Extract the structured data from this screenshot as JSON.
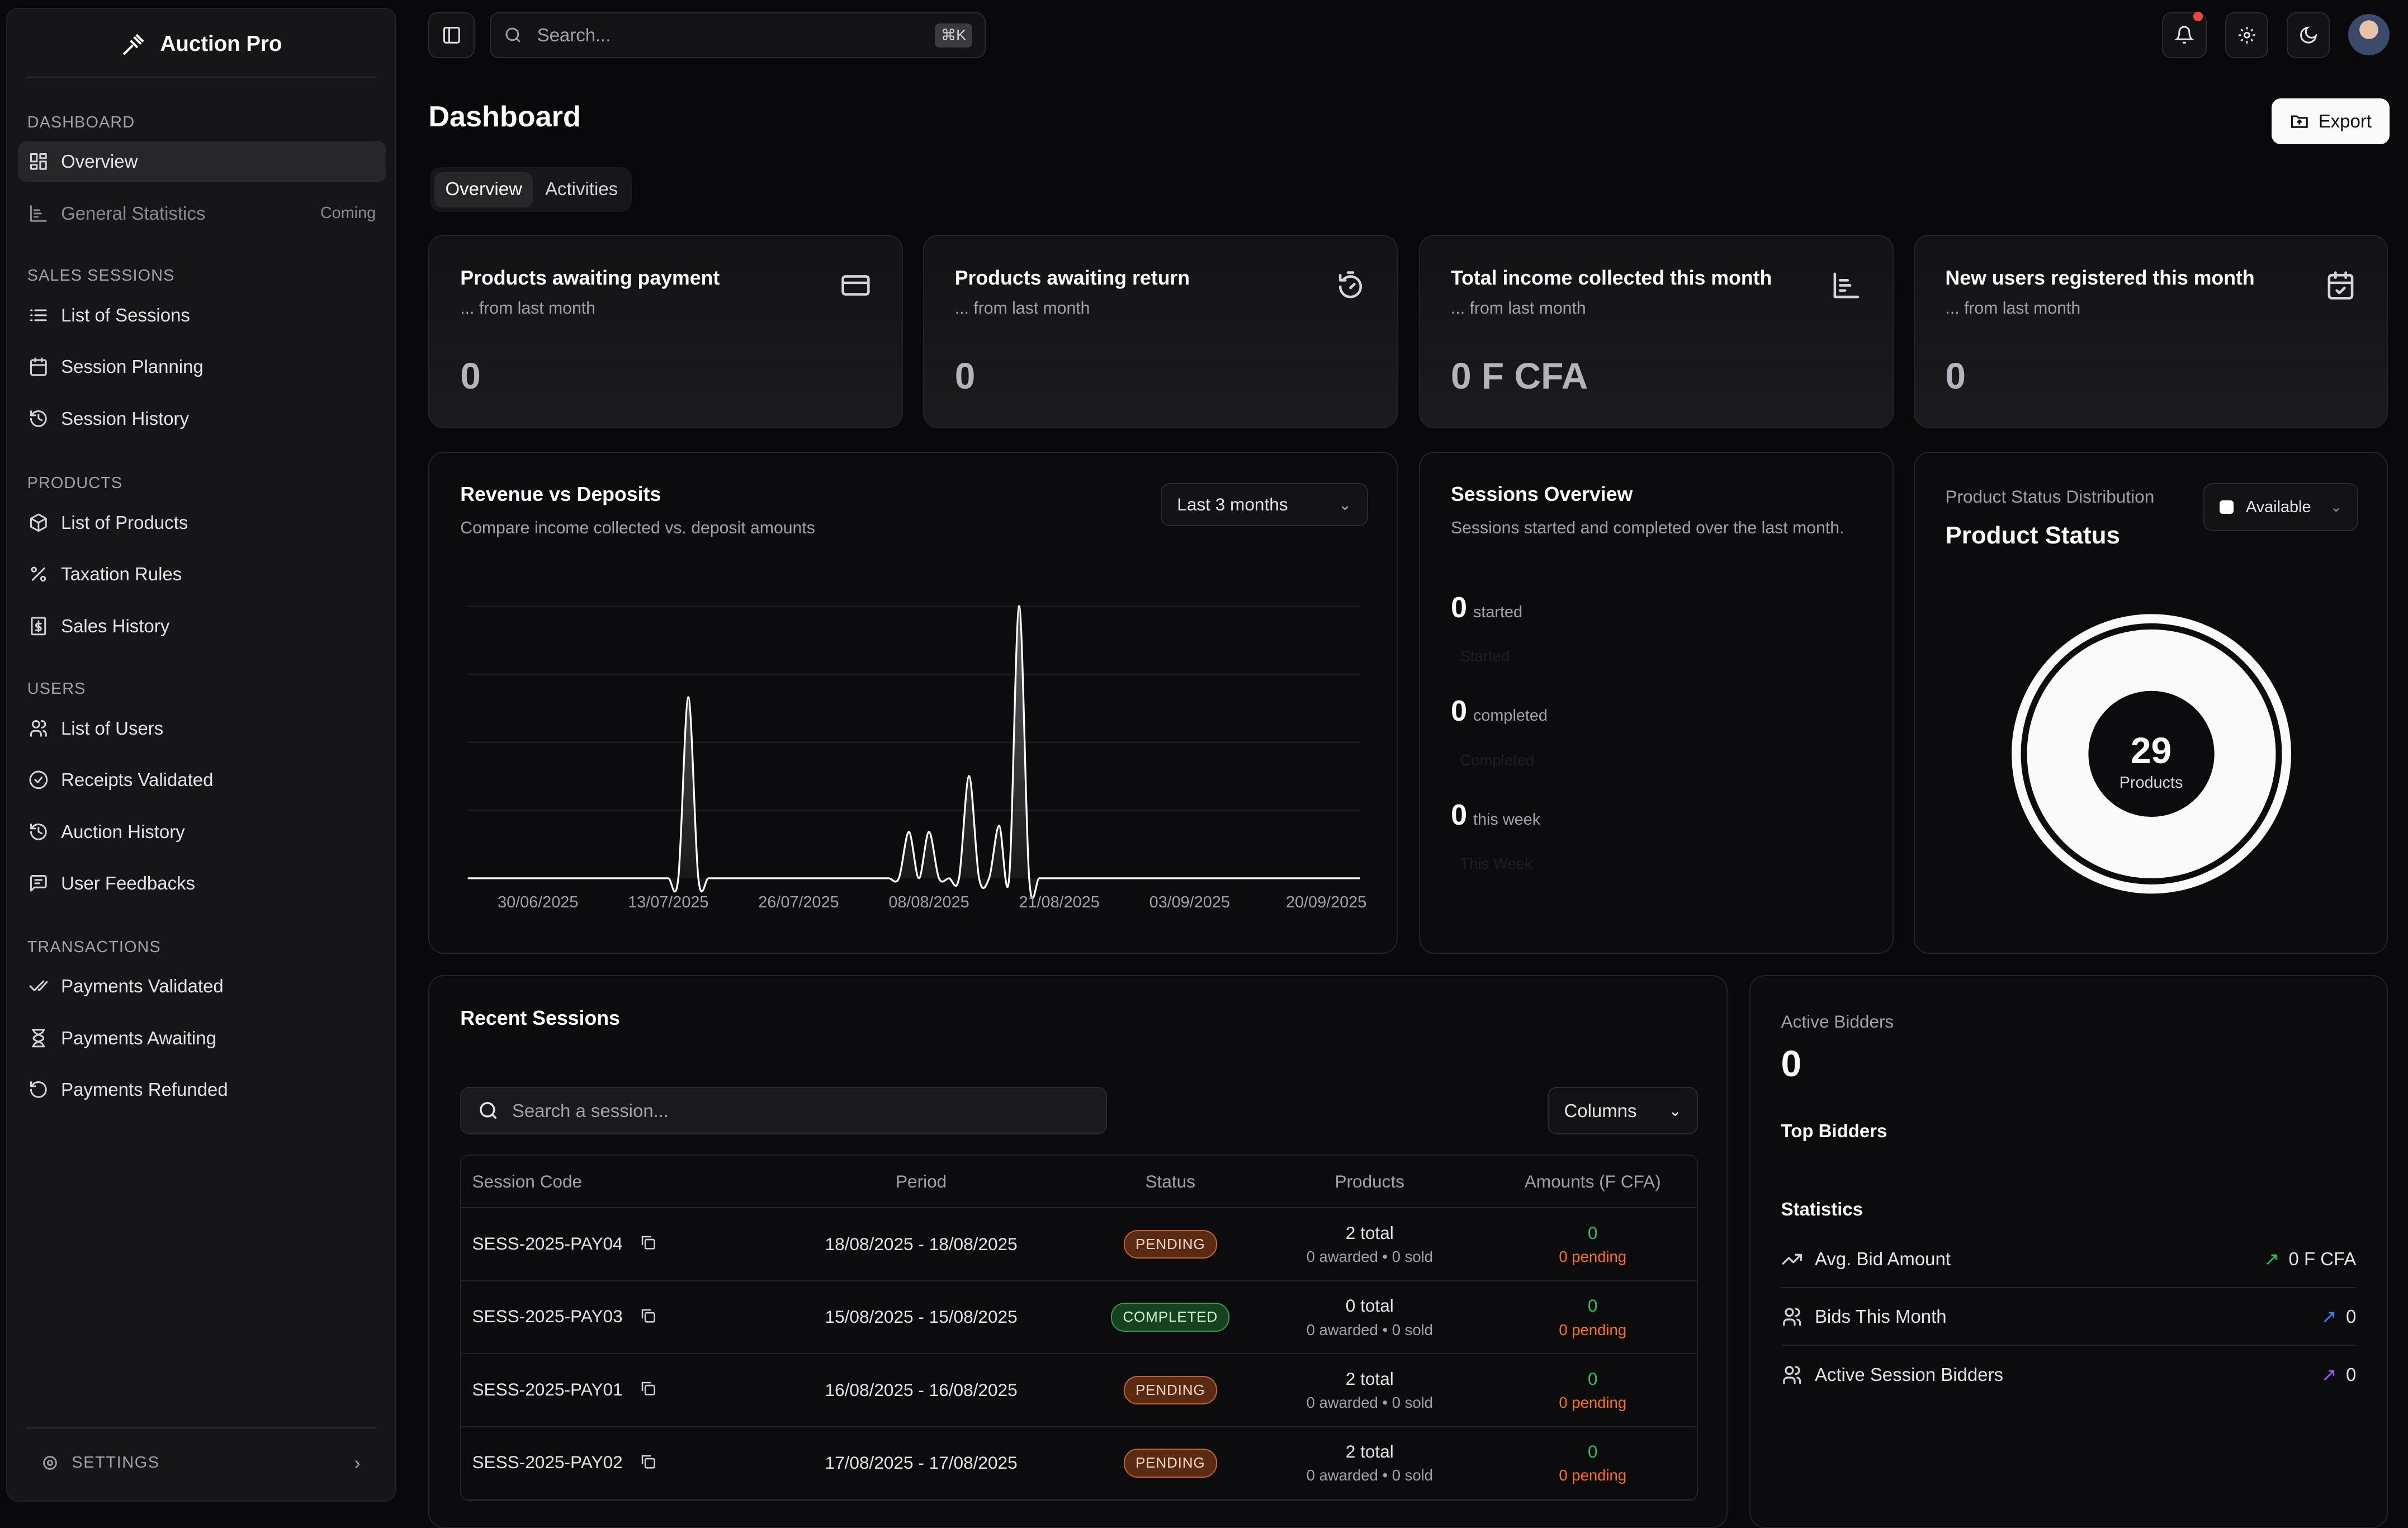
{
  "app": {
    "name": "Auction Pro"
  },
  "sidebar": {
    "sections": [
      {
        "title": "DASHBOARD",
        "items": [
          {
            "label": "Overview",
            "icon": "layout-grid-icon",
            "active": true
          },
          {
            "label": "General Statistics",
            "icon": "bar-chart-icon",
            "badge": "Coming",
            "disabled": true
          }
        ]
      },
      {
        "title": "SALES SESSIONS",
        "items": [
          {
            "label": "List of Sessions",
            "icon": "list-icon"
          },
          {
            "label": "Session Planning",
            "icon": "calendar-icon"
          },
          {
            "label": "Session History",
            "icon": "history-icon"
          }
        ]
      },
      {
        "title": "PRODUCTS",
        "items": [
          {
            "label": "List of Products",
            "icon": "package-icon"
          },
          {
            "label": "Taxation Rules",
            "icon": "percent-icon"
          },
          {
            "label": "Sales History",
            "icon": "receipt-icon"
          }
        ]
      },
      {
        "title": "USERS",
        "items": [
          {
            "label": "List of Users",
            "icon": "users-icon"
          },
          {
            "label": "Receipts Validated",
            "icon": "check-circle-icon"
          },
          {
            "label": "Auction History",
            "icon": "history-icon"
          },
          {
            "label": "User Feedbacks",
            "icon": "message-icon"
          }
        ]
      },
      {
        "title": "TRANSACTIONS",
        "items": [
          {
            "label": "Payments Validated",
            "icon": "check-check-icon"
          },
          {
            "label": "Payments Awaiting",
            "icon": "hourglass-icon"
          },
          {
            "label": "Payments Refunded",
            "icon": "refund-icon"
          }
        ]
      }
    ],
    "settings_label": "SETTINGS"
  },
  "topbar": {
    "search_placeholder": "Search...",
    "shortcut": "⌘K",
    "notification_dot_color": "#ef4444"
  },
  "page": {
    "title": "Dashboard",
    "export_label": "Export",
    "tabs": [
      {
        "label": "Overview",
        "active": true
      },
      {
        "label": "Activities"
      }
    ]
  },
  "stats": [
    {
      "title": "Products awaiting payment",
      "sub": "... from last month",
      "value": "0",
      "icon": "credit-card-icon"
    },
    {
      "title": "Products awaiting return",
      "sub": "... from last month",
      "value": "0",
      "icon": "timer-reset-icon"
    },
    {
      "title": "Total income collected this month",
      "sub": "... from last month",
      "value": "0 F CFA",
      "icon": "bar-chart-icon"
    },
    {
      "title": "New users registered this month",
      "sub": "... from last month",
      "value": "0",
      "icon": "calendar-check-icon"
    }
  ],
  "revenue": {
    "title": "Revenue vs Deposits",
    "subtitle": "Compare income collected vs. deposit amounts",
    "range": "Last 3 months"
  },
  "chart_data": {
    "type": "area",
    "title": "Revenue vs Deposits",
    "xlabel": "",
    "ylabel": "",
    "x_ticks": [
      "30/06/2025",
      "13/07/2025",
      "26/07/2025",
      "08/08/2025",
      "21/08/2025",
      "03/09/2025",
      "20/09/2025"
    ],
    "x_range": [
      "2025-06-23",
      "2025-09-20"
    ],
    "ylim": [
      0,
      4
    ],
    "grid": "horizontal",
    "points": [
      {
        "x": "2025-07-15",
        "y": 2.66
      },
      {
        "x": "2025-08-06",
        "y": 0.68
      },
      {
        "x": "2025-08-08",
        "y": 0.68
      },
      {
        "x": "2025-08-12",
        "y": 1.5
      },
      {
        "x": "2025-08-15",
        "y": 0.77
      },
      {
        "x": "2025-08-17",
        "y": 4
      }
    ],
    "color": "#ffffff"
  },
  "sessions_overview": {
    "title": "Sessions Overview",
    "subtitle": "Sessions started and completed over the last month.",
    "metrics": [
      {
        "value": "0",
        "label": "started",
        "ghost": "Started"
      },
      {
        "value": "0",
        "label": "completed",
        "ghost": "Completed"
      },
      {
        "value": "0",
        "label": "this week",
        "ghost": "This Week"
      }
    ]
  },
  "product_status": {
    "caption": "Product Status Distribution",
    "title": "Product Status",
    "filter": "Available",
    "total": "29",
    "total_label": "Products"
  },
  "recent_sessions": {
    "title": "Recent Sessions",
    "search_placeholder": "Search a session...",
    "columns_label": "Columns",
    "headers": [
      "Session Code",
      "Period",
      "Status",
      "Products",
      "Amounts (F CFA)"
    ],
    "rows": [
      {
        "code": "SESS-2025-PAY04",
        "period": "18/08/2025 - 18/08/2025",
        "status": "PENDING",
        "products": "2 total",
        "products_sub": "0 awarded • 0 sold",
        "amount": "0",
        "amount_sub": "0 pending"
      },
      {
        "code": "SESS-2025-PAY03",
        "period": "15/08/2025 - 15/08/2025",
        "status": "COMPLETED",
        "products": "0 total",
        "products_sub": "0 awarded • 0 sold",
        "amount": "0",
        "amount_sub": "0 pending"
      },
      {
        "code": "SESS-2025-PAY01",
        "period": "16/08/2025 - 16/08/2025",
        "status": "PENDING",
        "products": "2 total",
        "products_sub": "0 awarded • 0 sold",
        "amount": "0",
        "amount_sub": "0 pending"
      },
      {
        "code": "SESS-2025-PAY02",
        "period": "17/08/2025 - 17/08/2025",
        "status": "PENDING",
        "products": "2 total",
        "products_sub": "0 awarded • 0 sold",
        "amount": "0",
        "amount_sub": "0 pending"
      }
    ]
  },
  "bidders": {
    "label": "Active Bidders",
    "value": "0",
    "top_title": "Top Bidders",
    "stats_title": "Statistics",
    "stats": [
      {
        "label": "Avg. Bid Amount",
        "value": "0 F CFA",
        "icon": "trending-up-icon",
        "arrow_color": "#22c55e"
      },
      {
        "label": "Bids This Month",
        "value": "0",
        "icon": "users-icon",
        "arrow_color": "#3b82f6"
      },
      {
        "label": "Active Session Bidders",
        "value": "0",
        "icon": "users-icon",
        "arrow_color": "#a855f7"
      }
    ]
  }
}
